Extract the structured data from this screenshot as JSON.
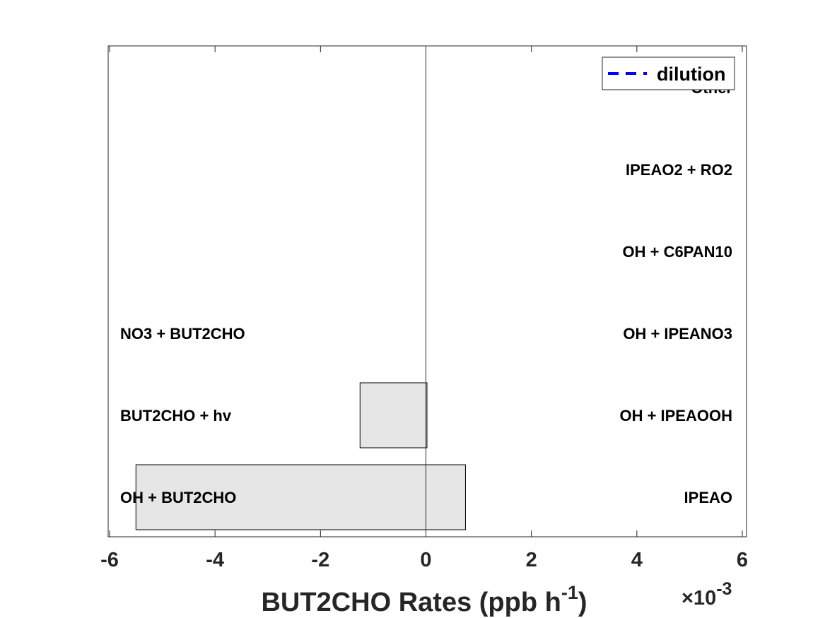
{
  "chart_data": {
    "type": "bar",
    "orientation": "horizontal",
    "x_axis": {
      "label_main": "BUT2CHO Rates (ppb h",
      "label_superscript": "-1",
      "label_close": ")",
      "exponent_prefix": "×10",
      "exponent_superscript": "-3",
      "xlim": [
        -6,
        6
      ],
      "ticks": [
        -6,
        -4,
        -2,
        0,
        2,
        4,
        6
      ],
      "tick_labels": [
        "-6",
        "-4",
        "-2",
        "0",
        "2",
        "4",
        "6"
      ]
    },
    "rows": [
      {
        "production_label": "IPEAO",
        "loss_label": "OH + BUT2CHO",
        "production": 0.75,
        "loss": -5.5
      },
      {
        "production_label": "OH + IPEAOOH",
        "loss_label": "BUT2CHO + hv",
        "production": 0.02,
        "loss": -1.25
      },
      {
        "production_label": "OH + IPEANO3",
        "loss_label": "NO3 + BUT2CHO",
        "production": 0,
        "loss": 0
      },
      {
        "production_label": "OH + C6PAN10",
        "loss_label": "",
        "production": 0,
        "loss": 0
      },
      {
        "production_label": "IPEAO2 + RO2",
        "loss_label": "",
        "production": 0,
        "loss": 0
      },
      {
        "production_label": "Other",
        "loss_label": "",
        "production": 0,
        "loss": 0
      }
    ],
    "legend": {
      "entries": [
        {
          "name": "dilution",
          "style": "dashed",
          "color": "#0000ff"
        }
      ],
      "placement": "top-right"
    },
    "bar_color": "#e6e6e6",
    "grid": false
  }
}
